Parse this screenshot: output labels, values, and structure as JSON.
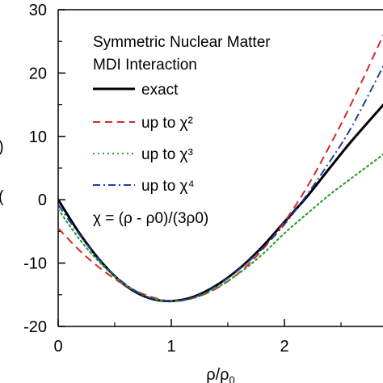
{
  "chart_data": {
    "type": "line",
    "title": "",
    "xlabel": "ρ/ρ0",
    "ylabel": "",
    "xlim": [
      0,
      2.9
    ],
    "ylim": [
      -20,
      30
    ],
    "x_ticks": [
      "0",
      "1",
      "2"
    ],
    "y_ticks": [
      "-20",
      "-10",
      "0",
      "10",
      "20",
      "30"
    ],
    "grid": false,
    "legend_placement": "top-left",
    "annotations": [
      "Symmetric Nuclear Matter",
      "MDI Interaction",
      "χ = (ρ - ρ0)/(3ρ0)"
    ],
    "series": [
      {
        "name": "exact",
        "color": "#000000",
        "dash": "solid",
        "x": [
          0,
          0.2,
          0.4,
          0.6,
          0.8,
          1.0,
          1.2,
          1.4,
          1.6,
          1.8,
          2.0,
          2.2,
          2.4,
          2.6,
          2.9
        ],
        "y": [
          0,
          -5.6,
          -10.2,
          -13.6,
          -15.5,
          -16.0,
          -15.3,
          -13.5,
          -10.9,
          -7.5,
          -3.5,
          0.5,
          5.0,
          9.4,
          15.5
        ]
      },
      {
        "name": "up to χ²",
        "color": "#d62728",
        "dash": "dashed",
        "x": [
          0,
          0.2,
          0.4,
          0.6,
          0.8,
          1.0,
          1.2,
          1.4,
          1.6,
          1.8,
          2.0,
          2.2,
          2.4,
          2.6,
          2.9
        ],
        "y": [
          -4.5,
          -8.2,
          -11.2,
          -13.6,
          -15.2,
          -16.0,
          -15.5,
          -14.0,
          -11.5,
          -8.0,
          -3.5,
          2.0,
          8.5,
          15.5,
          27.0
        ]
      },
      {
        "name": "up to χ³",
        "color": "#2ca02c",
        "dash": "dotted",
        "x": [
          0,
          0.2,
          0.4,
          0.6,
          0.8,
          1.0,
          1.2,
          1.4,
          1.6,
          1.8,
          2.0,
          2.2,
          2.4,
          2.6,
          2.9
        ],
        "y": [
          -1.5,
          -6.5,
          -10.5,
          -13.5,
          -15.4,
          -16.0,
          -15.5,
          -13.9,
          -11.6,
          -8.7,
          -5.3,
          -2.2,
          0.8,
          3.5,
          7.5
        ]
      },
      {
        "name": "up to χ⁴",
        "color": "#1f3fa0",
        "dash": "dashdot",
        "x": [
          0,
          0.2,
          0.4,
          0.6,
          0.8,
          1.0,
          1.2,
          1.4,
          1.6,
          1.8,
          2.0,
          2.2,
          2.4,
          2.6,
          2.9
        ],
        "y": [
          -0.8,
          -5.8,
          -10.2,
          -13.4,
          -15.4,
          -16.0,
          -15.4,
          -13.6,
          -11.0,
          -7.8,
          -3.9,
          0.8,
          6.0,
          11.7,
          22.0
        ]
      }
    ]
  }
}
